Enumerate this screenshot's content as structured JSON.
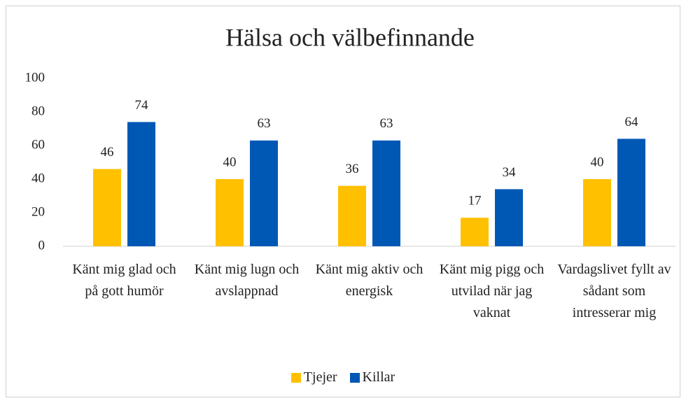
{
  "chart_data": {
    "type": "bar",
    "title": "Hälsa och välbefinnande",
    "categories": [
      "Känt mig glad och på gott humör",
      "Känt mig lugn och avslappnad",
      "Känt mig aktiv och energisk",
      "Känt mig pigg och utvilad när jag vaknat",
      "Vardagslivet fyllt av sådant som intresserar mig"
    ],
    "series": [
      {
        "name": "Tjejer",
        "color": "#ffc000",
        "values": [
          46,
          40,
          36,
          17,
          40
        ]
      },
      {
        "name": "Killar",
        "color": "#0058b5",
        "values": [
          74,
          63,
          63,
          34,
          64
        ]
      }
    ],
    "ylim": [
      0,
      100
    ],
    "yticks": [
      0,
      20,
      40,
      60,
      80,
      100
    ],
    "grid": false,
    "legend": "bottom"
  }
}
